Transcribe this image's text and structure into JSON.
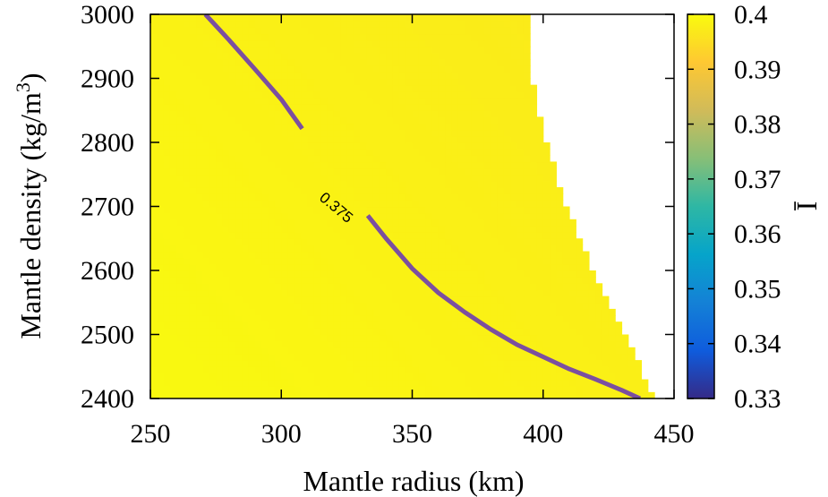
{
  "chart_data": {
    "type": "heatmap",
    "title": "",
    "xlabel": "Mantle radius (km)",
    "ylabel_main": "Mantle density (kg/m",
    "ylabel_sup": "3",
    "ylabel_close": ")",
    "xlim": [
      250,
      450
    ],
    "ylim": [
      2400,
      3000
    ],
    "x_ticks": [
      250,
      300,
      350,
      400,
      450
    ],
    "y_ticks": [
      2400,
      2500,
      2600,
      2700,
      2800,
      2900,
      3000
    ],
    "colorbar": {
      "label": "Ī",
      "range": [
        0.33,
        0.4
      ],
      "ticks": [
        "0.33",
        "0.34",
        "0.35",
        "0.36",
        "0.37",
        "0.38",
        "0.39",
        "0.4"
      ],
      "colormap": [
        "#352a87",
        "#0f5cdd",
        "#1481d6",
        "#06a4ca",
        "#2eb7a4",
        "#87bf77",
        "#d1bb59",
        "#fec832",
        "#f9fb0e"
      ]
    },
    "valid_region_edge": {
      "density": [
        2400,
        2450,
        2500,
        2550,
        2600,
        2650,
        2700,
        2750,
        2800,
        2850,
        2900,
        2950,
        3000
      ],
      "max_radius": [
        442,
        437,
        431,
        425,
        419,
        414,
        409,
        405,
        401,
        398,
        396,
        395,
        394
      ]
    },
    "contour": {
      "level_label": "0.375",
      "radius": [
        271,
        280,
        290,
        300,
        310,
        320,
        330,
        340,
        350,
        360,
        370,
        380,
        390,
        400,
        410,
        420,
        430,
        437
      ],
      "density": [
        3000,
        2960,
        2914,
        2867,
        2810,
        2755,
        2701,
        2650,
        2603,
        2565,
        2535,
        2508,
        2484,
        2465,
        2446,
        2430,
        2413,
        2400
      ]
    }
  }
}
